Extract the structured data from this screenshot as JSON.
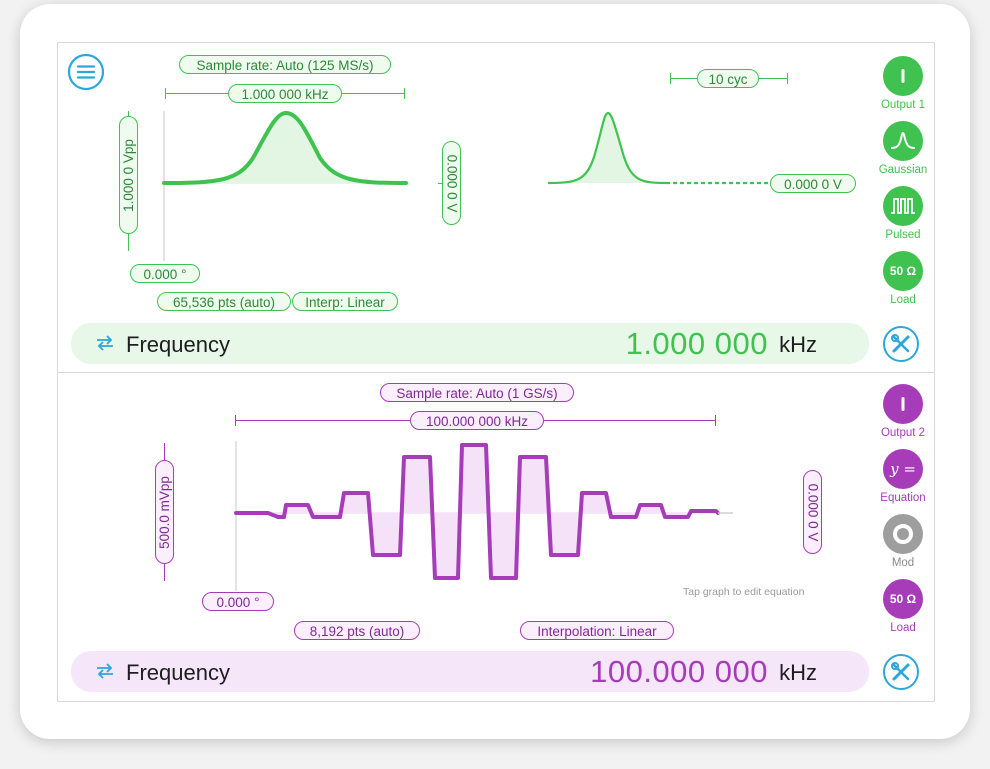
{
  "channel1": {
    "sample_rate": "Sample rate: Auto (125 MS/s)",
    "period": "1.000 000 kHz",
    "amplitude": "1.000 0 Vpp",
    "offset": "0.000 0 V",
    "phase": "0.000 °",
    "points": "65,536 pts (auto)",
    "interpolation": "Interp: Linear",
    "burst_cycles": "10 cyc",
    "idle_level": "0.000 0 V",
    "buttons": [
      {
        "label": "Output 1",
        "icon": "power-icon"
      },
      {
        "label": "Gaussian",
        "icon": "gaussian-icon"
      },
      {
        "label": "Pulsed",
        "icon": "pulse-train-icon"
      },
      {
        "label": "Load",
        "icon": "load-50-ohm-icon",
        "text": "50 Ω"
      }
    ],
    "freq_label": "Frequency",
    "freq_value": "1.000 000",
    "freq_unit": "kHz",
    "color": "#3fc24f"
  },
  "channel2": {
    "sample_rate": "Sample rate: Auto (1 GS/s)",
    "period": "100.000 000 kHz",
    "amplitude": "500.0 mVpp",
    "offset": "0.000 0 V",
    "phase": "0.000 °",
    "points": "8,192 pts (auto)",
    "interpolation": "Interpolation: Linear",
    "hint": "Tap graph to edit equation",
    "buttons": [
      {
        "label": "Output 2",
        "icon": "power-icon"
      },
      {
        "label": "Equation",
        "icon": "equation-icon",
        "text": "y ="
      },
      {
        "label": "Mod",
        "icon": "modulation-ring-icon"
      },
      {
        "label": "Load",
        "icon": "load-50-ohm-icon",
        "text": "50 Ω"
      }
    ],
    "freq_label": "Frequency",
    "freq_value": "100.000 000",
    "freq_unit": "kHz",
    "color": "#a63cb8"
  },
  "colors": {
    "accent_blue": "#2aa7dc",
    "green": "#3fc24f",
    "purple": "#a63cb8",
    "mod_gray": "#9e9e9e"
  }
}
